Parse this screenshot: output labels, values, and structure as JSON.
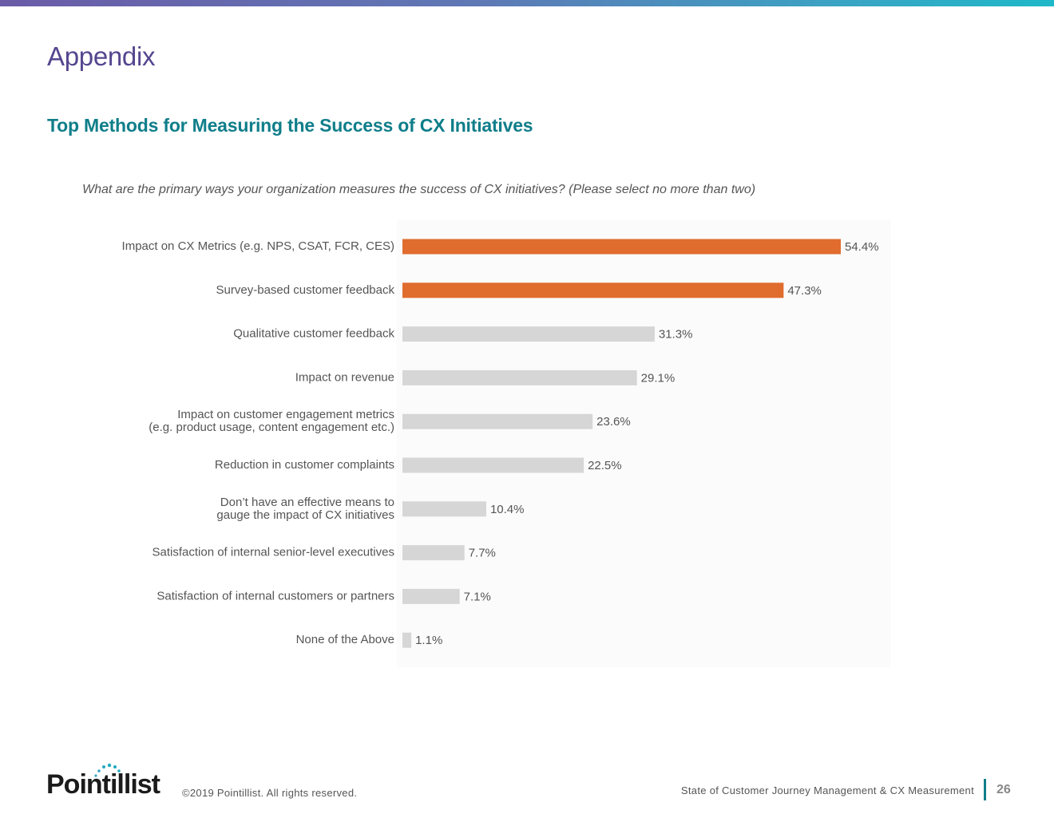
{
  "header": {
    "title": "Appendix"
  },
  "chart_data": {
    "type": "bar",
    "orientation": "horizontal",
    "title": "Top Methods for Measuring the Success of CX Initiatives",
    "subtitle": "What are the primary ways your organization measures the success of CX initiatives? (Please select no more than two)",
    "xlim": [
      0,
      60
    ],
    "grid": false,
    "categories": [
      [
        "Impact on CX Metrics (e.g. NPS, CSAT, FCR, CES)"
      ],
      [
        "Survey-based customer feedback"
      ],
      [
        "Qualitative customer feedback"
      ],
      [
        "Impact on revenue"
      ],
      [
        "Impact on customer engagement metrics",
        "(e.g. product usage, content engagement etc.)"
      ],
      [
        "Reduction in customer complaints"
      ],
      [
        "Don’t have an effective means to",
        "gauge the impact of CX initiatives"
      ],
      [
        "Satisfaction of internal senior-level executives"
      ],
      [
        "Satisfaction of internal customers or partners"
      ],
      [
        "None of the Above"
      ]
    ],
    "values": [
      54.4,
      47.3,
      31.3,
      29.1,
      23.6,
      22.5,
      10.4,
      7.7,
      7.1,
      1.1
    ],
    "value_labels": [
      "54.4%",
      "47.3%",
      "31.3%",
      "29.1%",
      "23.6%",
      "22.5%",
      "10.4%",
      "7.7%",
      "7.1%",
      "1.1%"
    ],
    "highlighted": [
      true,
      true,
      false,
      false,
      false,
      false,
      false,
      false,
      false,
      false
    ],
    "colors": {
      "highlight": "#e06c2e",
      "default": "#d6d6d6",
      "plot_background": "#fbfbfb"
    }
  },
  "logo": {
    "text": "Pointillist"
  },
  "footer": {
    "copyright": "©2019 Pointillist. All rights reserved.",
    "report_title": "State of Customer Journey Management & CX Measurement",
    "page_number": "26"
  }
}
